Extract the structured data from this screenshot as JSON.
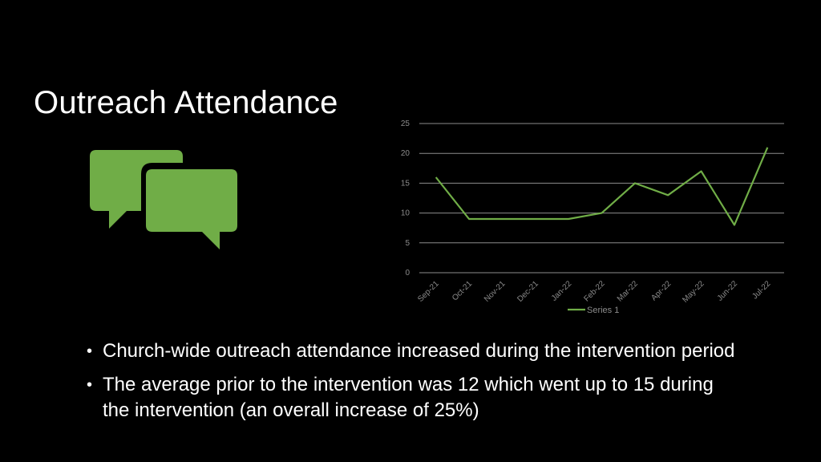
{
  "slide": {
    "title": "Outreach Attendance",
    "bullets": [
      " Church-wide outreach attendance increased during the intervention period",
      "The average prior to the intervention was 12 which went up to 15 during the intervention (an overall increase of 25%)"
    ]
  },
  "icon": {
    "name": "chat-bubbles-icon",
    "color": "#70ad47"
  },
  "chart_data": {
    "type": "line",
    "categories": [
      "Sep-21",
      "Oct-21",
      "Nov-21",
      "Dec-21",
      "Jan-22",
      "Feb-22",
      "Mar-22",
      "Apr-22",
      "May-22",
      "Jun-22",
      "Jul-22"
    ],
    "series": [
      {
        "name": "Series 1",
        "values": [
          16,
          9,
          9,
          9,
          9,
          10,
          15,
          13,
          17,
          8,
          21
        ],
        "color": "#70ad47"
      }
    ],
    "yticks": [
      0,
      5,
      10,
      15,
      20,
      25
    ],
    "ylim": [
      0,
      25
    ],
    "grid": true,
    "legend": "bottom",
    "title": "",
    "xlabel": "",
    "ylabel": ""
  }
}
